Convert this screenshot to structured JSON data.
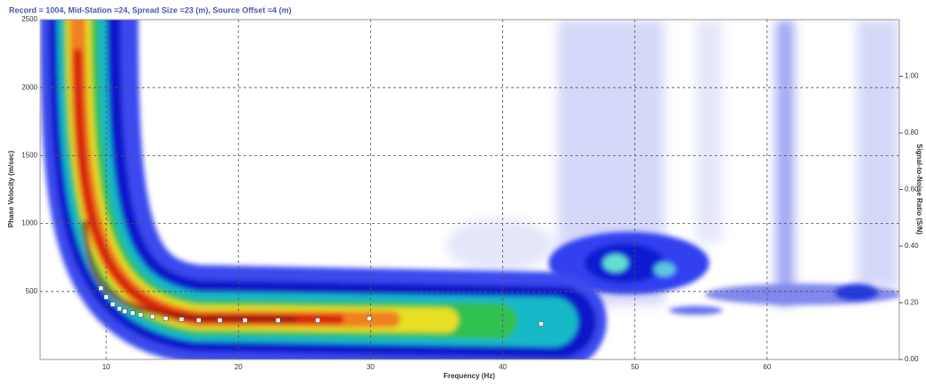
{
  "chart_data": {
    "type": "scatter",
    "title": "Record = 1004, Mid-Station =24, Spread Size =23 (m), Source Offset =4 (m)",
    "x_label": "Frequency (Hz)",
    "y_label": "Phase Velocity (m/sec)",
    "y2_label": "Signal-to-Noise Ratio (S/N)",
    "x": [
      9.6,
      10,
      10.5,
      11,
      11.4,
      12,
      12.6,
      13.5,
      14.5,
      15.7,
      17,
      18.6,
      20.5,
      23,
      26,
      29.9,
      42.9
    ],
    "values": [
      524,
      459,
      406,
      374,
      354,
      341,
      328,
      315,
      301,
      295,
      288,
      288,
      288,
      288,
      288,
      301,
      262
    ],
    "color": "#ffffff",
    "xlim": [
      5,
      70
    ],
    "xticks": [
      10,
      20,
      30,
      40,
      50,
      60
    ],
    "ylim": [
      0,
      2500
    ],
    "yticks": [
      500,
      1000,
      1500,
      2000,
      2500
    ],
    "y2lim": [
      0,
      1.2
    ],
    "y2ticks": [
      {
        "value": 0,
        "label": "0.00"
      },
      {
        "value": 0.2,
        "label": "0.20"
      },
      {
        "value": 0.4,
        "label": "0.40"
      },
      {
        "value": 0.6,
        "label": "0.60"
      },
      {
        "value": 0.8,
        "label": "0.80"
      },
      {
        "value": 1,
        "label": "1.00"
      }
    ],
    "grid": true
  }
}
